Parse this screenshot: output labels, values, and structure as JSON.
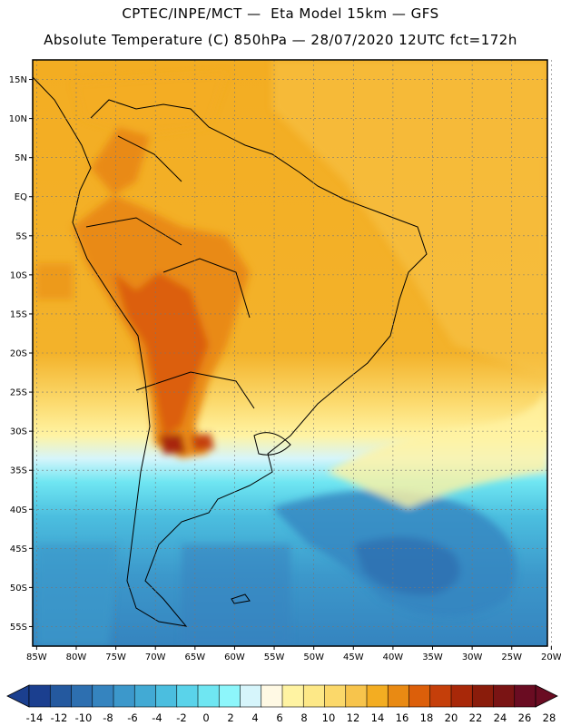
{
  "header": {
    "line1": "CPTEC/INPE/MCT —  Eta Model 15km — GFS",
    "line2": "Absolute Temperature (C) 850hPa — 28/07/2020 12UTC fct=172h"
  },
  "map": {
    "lat_ticks": [
      "15N",
      "10N",
      "5N",
      "EQ",
      "5S",
      "10S",
      "15S",
      "20S",
      "25S",
      "30S",
      "35S",
      "40S",
      "45S",
      "50S",
      "55S"
    ],
    "lon_ticks": [
      "85W",
      "80W",
      "75W",
      "70W",
      "65W",
      "60W",
      "55W",
      "50W",
      "45W",
      "40W",
      "35W",
      "30W",
      "25W",
      "20W"
    ],
    "lat_range": [
      17.5,
      -57.5
    ],
    "lon_range": [
      -85.5,
      -20.5
    ],
    "grid": true,
    "colorbar": {
      "labels": [
        "-14",
        "-12",
        "-10",
        "-8",
        "-6",
        "-4",
        "-2",
        "0",
        "2",
        "4",
        "6",
        "8",
        "10",
        "12",
        "14",
        "16",
        "18",
        "20",
        "22",
        "24",
        "26",
        "28"
      ],
      "colors": [
        "#1b3f8f",
        "#24599f",
        "#2d6fb0",
        "#3584bf",
        "#3c98cb",
        "#42aad4",
        "#4bbedf",
        "#5ad3ea",
        "#6fe6f2",
        "#8df6fb",
        "#d6f5fb",
        "#fff9e4",
        "#fff3a2",
        "#fde887",
        "#fbd86a",
        "#f7c44c",
        "#f3ad22",
        "#e98a13",
        "#dc5f0a",
        "#c53f0a",
        "#a82809",
        "#8a1c0b",
        "#7a1414",
        "#6a0c22"
      ]
    }
  }
}
